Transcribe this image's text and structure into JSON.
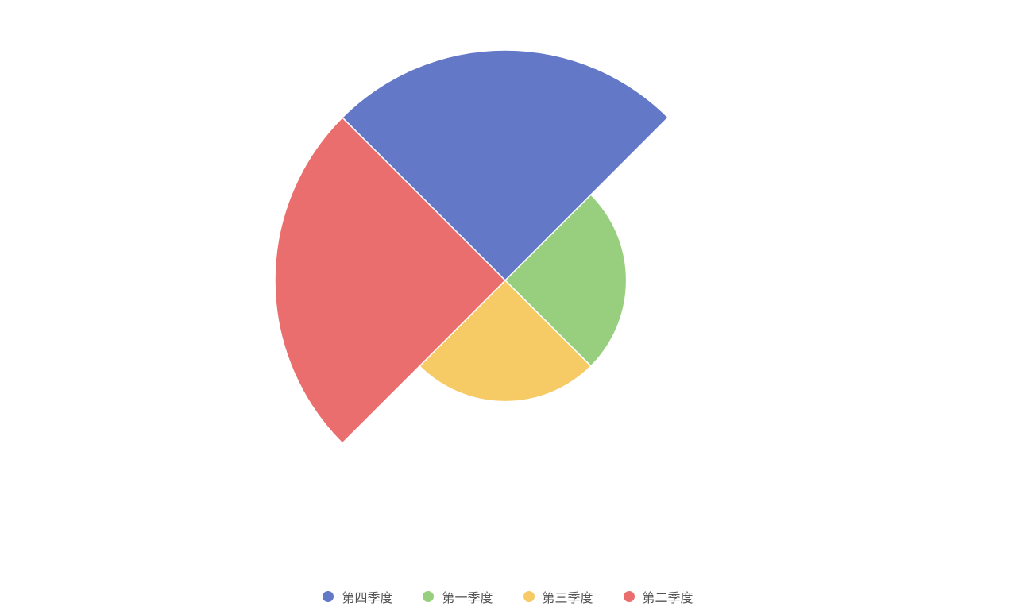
{
  "chart_data": {
    "type": "pie",
    "rose_type": "radius",
    "categories": [
      "第四季度",
      "第一季度",
      "第三季度",
      "第二季度"
    ],
    "values": [
      57,
      30,
      30,
      57
    ],
    "colors": [
      "#6478c8",
      "#98cf7e",
      "#f6cb66",
      "#ea6e6e"
    ],
    "legend_position": "bottom-center"
  },
  "legend": {
    "items": [
      {
        "label": "第四季度",
        "color": "#6478c8"
      },
      {
        "label": "第一季度",
        "color": "#98cf7e"
      },
      {
        "label": "第三季度",
        "color": "#f6cb66"
      },
      {
        "label": "第二季度",
        "color": "#ea6e6e"
      }
    ]
  }
}
